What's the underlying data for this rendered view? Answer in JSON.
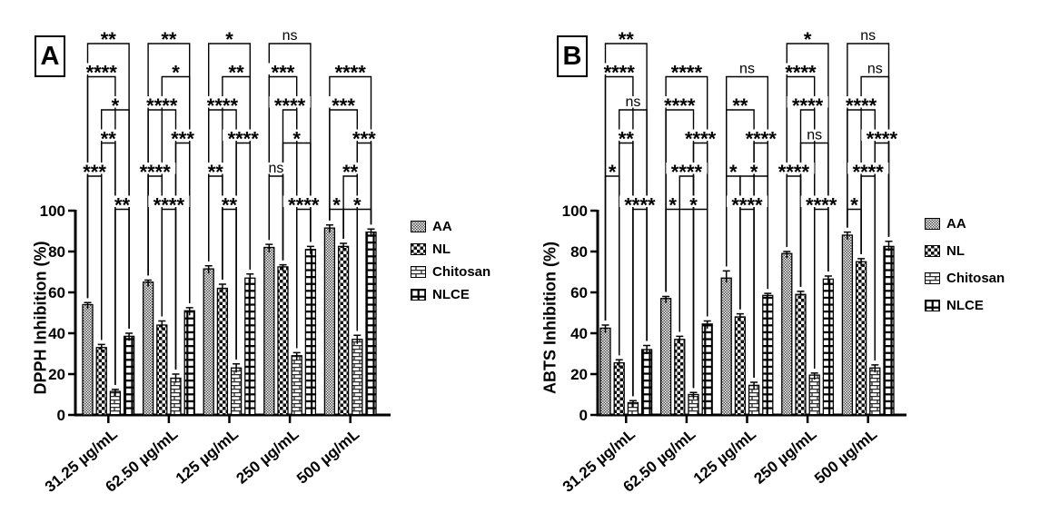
{
  "figure": {
    "background": "#ffffff"
  },
  "colors": {
    "ink": "#000000",
    "fine_checker_gray": "#4a4a4a"
  },
  "chart_data": [
    {
      "type": "bar",
      "panel": "A",
      "ylabel": "DPPH Inhibition (%)",
      "xlabel": "",
      "ylim": [
        0,
        100
      ],
      "yticks": [
        0,
        20,
        40,
        60,
        80,
        100
      ],
      "grid": false,
      "legend_position": "right",
      "categories": [
        "31.25 µg/mL",
        "62.50 µg/mL",
        "125 µg/mL",
        "250 µg/mL",
        "500 µg/mL"
      ],
      "series": [
        {
          "name": "AA",
          "pattern": "fine-checker",
          "values": [
            54,
            65,
            71.5,
            82,
            91.5
          ],
          "errors": [
            1,
            1,
            1.5,
            1.5,
            1.5
          ]
        },
        {
          "name": "NL",
          "pattern": "coarse-checker",
          "values": [
            33,
            44,
            62,
            72.5,
            82.5
          ],
          "errors": [
            1.5,
            2,
            2,
            1,
            1.5
          ]
        },
        {
          "name": "Chitosan",
          "pattern": "brick",
          "values": [
            11.5,
            18,
            23,
            29,
            37
          ],
          "errors": [
            1,
            2,
            2,
            1.5,
            2
          ]
        },
        {
          "name": "NLCE",
          "pattern": "grid",
          "values": [
            38.5,
            51,
            67,
            81,
            89.5
          ],
          "errors": [
            1.5,
            1.5,
            2,
            1.5,
            1.5
          ]
        }
      ],
      "significance": [
        {
          "group": 0,
          "bars": [
            0,
            3
          ],
          "label": "**",
          "row": 0
        },
        {
          "group": 0,
          "bars": [
            0,
            2
          ],
          "label": "****",
          "row": 1
        },
        {
          "group": 0,
          "bars": [
            1,
            3
          ],
          "label": "*",
          "row": 2
        },
        {
          "group": 0,
          "bars": [
            1,
            2
          ],
          "label": "**",
          "row": 3
        },
        {
          "group": 0,
          "bars": [
            0,
            1
          ],
          "label": "***",
          "row": 4
        },
        {
          "group": 0,
          "bars": [
            2,
            3
          ],
          "label": "**",
          "row": 5
        },
        {
          "group": 1,
          "bars": [
            0,
            3
          ],
          "label": "**",
          "row": 0
        },
        {
          "group": 1,
          "bars": [
            1,
            3
          ],
          "label": "*",
          "row": 1
        },
        {
          "group": 1,
          "bars": [
            0,
            2
          ],
          "label": "****",
          "row": 2
        },
        {
          "group": 1,
          "bars": [
            2,
            3
          ],
          "label": "***",
          "row": 3
        },
        {
          "group": 1,
          "bars": [
            0,
            1
          ],
          "label": "****",
          "row": 4
        },
        {
          "group": 1,
          "bars": [
            1,
            2
          ],
          "label": "****",
          "row": 5
        },
        {
          "group": 2,
          "bars": [
            0,
            3
          ],
          "label": "*",
          "row": 0
        },
        {
          "group": 2,
          "bars": [
            1,
            3
          ],
          "label": "**",
          "row": 1
        },
        {
          "group": 2,
          "bars": [
            0,
            2
          ],
          "label": "****",
          "row": 2
        },
        {
          "group": 2,
          "bars": [
            2,
            3
          ],
          "label": "****",
          "row": 3
        },
        {
          "group": 2,
          "bars": [
            0,
            1
          ],
          "label": "**",
          "row": 4
        },
        {
          "group": 2,
          "bars": [
            1,
            2
          ],
          "label": "**",
          "row": 5
        },
        {
          "group": 3,
          "bars": [
            0,
            3
          ],
          "label": "ns",
          "row": 0
        },
        {
          "group": 3,
          "bars": [
            0,
            2
          ],
          "label": "***",
          "row": 1
        },
        {
          "group": 3,
          "bars": [
            1,
            2
          ],
          "label": "****",
          "row": 2
        },
        {
          "group": 3,
          "bars": [
            1,
            3
          ],
          "label": "*",
          "row": 3
        },
        {
          "group": 3,
          "bars": [
            0,
            1
          ],
          "label": "ns",
          "row": 4
        },
        {
          "group": 3,
          "bars": [
            2,
            3
          ],
          "label": "****",
          "row": 5
        },
        {
          "group": 4,
          "bars": [
            0,
            3
          ],
          "label": "****",
          "row": 1
        },
        {
          "group": 4,
          "bars": [
            0,
            2
          ],
          "label": "***",
          "row": 2
        },
        {
          "group": 4,
          "bars": [
            2,
            3
          ],
          "label": "***",
          "row": 3
        },
        {
          "group": 4,
          "bars": [
            1,
            2
          ],
          "label": "**",
          "row": 4
        },
        {
          "group": 4,
          "bars": [
            0,
            1
          ],
          "label": "*",
          "row": 5
        },
        {
          "group": 4,
          "bars": [
            1,
            3
          ],
          "label": "*",
          "row": 5
        }
      ]
    },
    {
      "type": "bar",
      "panel": "B",
      "ylabel": "ABTS Inhibition (%)",
      "xlabel": "",
      "ylim": [
        0,
        100
      ],
      "yticks": [
        0,
        20,
        40,
        60,
        80,
        100
      ],
      "grid": false,
      "legend_position": "right",
      "categories": [
        "31.25 µg/mL",
        "62.50 µg/mL",
        "125 µg/mL",
        "250 µg/mL",
        "500 µg/mL"
      ],
      "series": [
        {
          "name": "AA",
          "pattern": "fine-checker",
          "values": [
            42.5,
            57,
            67,
            79,
            88
          ],
          "errors": [
            1.5,
            1,
            3.5,
            1,
            1.5
          ]
        },
        {
          "name": "NL",
          "pattern": "coarse-checker",
          "values": [
            25.5,
            37,
            48,
            59,
            75
          ],
          "errors": [
            1.5,
            1.5,
            1.5,
            1.5,
            1.5
          ]
        },
        {
          "name": "Chitosan",
          "pattern": "brick",
          "values": [
            6,
            10,
            14.5,
            19.5,
            23
          ],
          "errors": [
            1,
            1,
            1.5,
            1,
            1.5
          ]
        },
        {
          "name": "NLCE",
          "pattern": "grid",
          "values": [
            32,
            44.5,
            58.5,
            66.5,
            82.5
          ],
          "errors": [
            2,
            1.5,
            1,
            1.5,
            2.5
          ]
        }
      ],
      "significance": [
        {
          "group": 0,
          "bars": [
            0,
            3
          ],
          "label": "**",
          "row": 0
        },
        {
          "group": 0,
          "bars": [
            0,
            2
          ],
          "label": "****",
          "row": 1
        },
        {
          "group": 0,
          "bars": [
            1,
            3
          ],
          "label": "ns",
          "row": 2
        },
        {
          "group": 0,
          "bars": [
            1,
            2
          ],
          "label": "**",
          "row": 3
        },
        {
          "group": 0,
          "bars": [
            0,
            1
          ],
          "label": "*",
          "row": 4
        },
        {
          "group": 0,
          "bars": [
            2,
            3
          ],
          "label": "****",
          "row": 5
        },
        {
          "group": 1,
          "bars": [
            0,
            3
          ],
          "label": "****",
          "row": 1
        },
        {
          "group": 1,
          "bars": [
            0,
            2
          ],
          "label": "****",
          "row": 2
        },
        {
          "group": 1,
          "bars": [
            2,
            3
          ],
          "label": "****",
          "row": 3
        },
        {
          "group": 1,
          "bars": [
            1,
            2
          ],
          "label": "****",
          "row": 4
        },
        {
          "group": 1,
          "bars": [
            0,
            1
          ],
          "label": "*",
          "row": 5
        },
        {
          "group": 1,
          "bars": [
            1,
            3
          ],
          "label": "*",
          "row": 5
        },
        {
          "group": 2,
          "bars": [
            0,
            3
          ],
          "label": "ns",
          "row": 1
        },
        {
          "group": 2,
          "bars": [
            0,
            2
          ],
          "label": "**",
          "row": 2
        },
        {
          "group": 2,
          "bars": [
            2,
            3
          ],
          "label": "****",
          "row": 3
        },
        {
          "group": 2,
          "bars": [
            0,
            1
          ],
          "label": "*",
          "row": 4
        },
        {
          "group": 2,
          "bars": [
            1,
            3
          ],
          "label": "*",
          "row": 4
        },
        {
          "group": 2,
          "bars": [
            1,
            2
          ],
          "label": "****",
          "row": 5
        },
        {
          "group": 3,
          "bars": [
            0,
            3
          ],
          "label": "*",
          "row": 0
        },
        {
          "group": 3,
          "bars": [
            0,
            2
          ],
          "label": "****",
          "row": 1
        },
        {
          "group": 3,
          "bars": [
            1,
            2
          ],
          "label": "****",
          "row": 2
        },
        {
          "group": 3,
          "bars": [
            1,
            3
          ],
          "label": "ns",
          "row": 3
        },
        {
          "group": 3,
          "bars": [
            0,
            1
          ],
          "label": "****",
          "row": 4
        },
        {
          "group": 3,
          "bars": [
            2,
            3
          ],
          "label": "****",
          "row": 5
        },
        {
          "group": 4,
          "bars": [
            0,
            3
          ],
          "label": "ns",
          "row": 0
        },
        {
          "group": 4,
          "bars": [
            1,
            3
          ],
          "label": "ns",
          "row": 1
        },
        {
          "group": 4,
          "bars": [
            0,
            2
          ],
          "label": "****",
          "row": 2
        },
        {
          "group": 4,
          "bars": [
            2,
            3
          ],
          "label": "****",
          "row": 3
        },
        {
          "group": 4,
          "bars": [
            1,
            2
          ],
          "label": "****",
          "row": 4
        },
        {
          "group": 4,
          "bars": [
            0,
            1
          ],
          "label": "*",
          "row": 5
        }
      ]
    }
  ]
}
